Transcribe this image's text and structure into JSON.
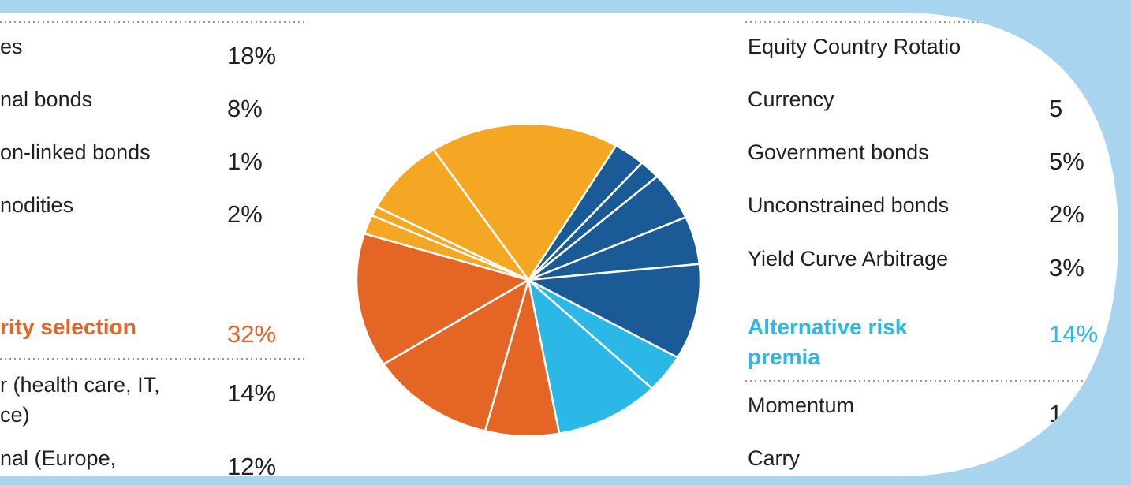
{
  "left": {
    "rows": [
      {
        "label": [
          "es"
        ],
        "value": "18%"
      },
      {
        "label": [
          "nal bonds"
        ],
        "value": "8%"
      },
      {
        "label": [
          "on-linked bonds"
        ],
        "value": "1%"
      },
      {
        "label": [
          "nodities"
        ],
        "value": "2%"
      }
    ],
    "section": {
      "label": [
        "rity selection"
      ],
      "value": "32%"
    },
    "rows2": [
      {
        "label": [
          "r (health care, IT,",
          "ce)"
        ],
        "value": "14%"
      },
      {
        "label": [
          "nal (Europe,"
        ],
        "value": "12%"
      }
    ]
  },
  "right": {
    "rows": [
      {
        "label": [
          "Equity Country Rotatio"
        ],
        "value": ""
      },
      {
        "label": [
          "Currency"
        ],
        "value": "5"
      },
      {
        "label": [
          "Government bonds"
        ],
        "value": "5%"
      },
      {
        "label": [
          "Unconstrained bonds"
        ],
        "value": "2%"
      },
      {
        "label": [
          "Yield Curve Arbitrage"
        ],
        "value": "3%"
      }
    ],
    "section": {
      "label": [
        "Alternative risk",
        "premia"
      ],
      "value": "14%"
    },
    "rows2": [
      {
        "label": [
          "Momentum"
        ],
        "value": "1"
      },
      {
        "label": [
          "Carry"
        ],
        "value": ""
      }
    ]
  },
  "chart_data": {
    "type": "pie",
    "values": [
      18,
      3,
      2,
      5,
      5,
      10,
      4,
      10,
      7,
      12,
      14,
      2,
      1,
      8
    ],
    "colors": [
      "#f4a722",
      "#1a5a96",
      "#1a5a96",
      "#1a5a96",
      "#1a5a96",
      "#1a5a96",
      "#2bb8e6",
      "#2bb8e6",
      "#e56525",
      "#e56525",
      "#e56525",
      "#f4a722",
      "#f4a722",
      "#f4a722"
    ]
  }
}
